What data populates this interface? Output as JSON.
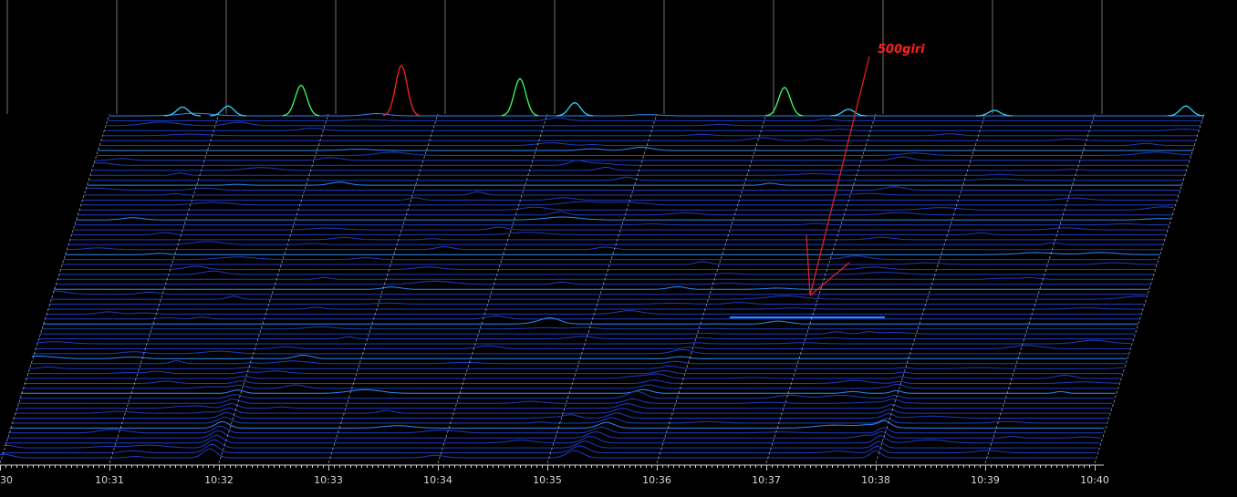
{
  "chart_data": {
    "type": "area",
    "title": "",
    "xlabel": "",
    "ylabel": "",
    "x_ticks": [
      "30",
      "10:31",
      "10:32",
      "10:33",
      "10:34",
      "10:35",
      "10:36",
      "10:37",
      "10:38",
      "10:39",
      "10:40"
    ],
    "xlim": [
      "10:30",
      "10:40"
    ],
    "grid": true,
    "annotation": "500giri",
    "colors": {
      "background": "#000000",
      "trace": "#1e3cc8",
      "trace_highlight": "#2a8cff",
      "grid": "#c8c8d8",
      "annotation": "#ff2020",
      "peak_low": "#30d0ff",
      "peak_mid": "#40ff60",
      "peak_high": "#ff2020"
    },
    "front_trace_peaks": [
      {
        "time": "10:30:40",
        "height": 0.08
      },
      {
        "time": "10:31:05",
        "height": 0.09
      },
      {
        "time": "10:31:45",
        "height": 0.28
      },
      {
        "time": "10:32:40",
        "height": 0.46
      },
      {
        "time": "10:33:45",
        "height": 0.34
      },
      {
        "time": "10:34:15",
        "height": 0.12
      },
      {
        "time": "10:36:10",
        "height": 0.26
      },
      {
        "time": "10:36:45",
        "height": 0.06
      },
      {
        "time": "10:38:05",
        "height": 0.05
      },
      {
        "time": "10:39:50",
        "height": 0.09
      }
    ],
    "features": [
      {
        "name": "sweep_1",
        "time_start": "10:31:55",
        "time_end": "10:32:10"
      },
      {
        "name": "sweep_2",
        "time_start": "10:35:35",
        "time_end": "10:36:20"
      },
      {
        "name": "500giri_line",
        "time_start": "10:36:55",
        "time_end": "10:38:05"
      },
      {
        "name": "sweep_3",
        "time_start": "10:38:00",
        "time_end": "10:38:05"
      }
    ]
  }
}
